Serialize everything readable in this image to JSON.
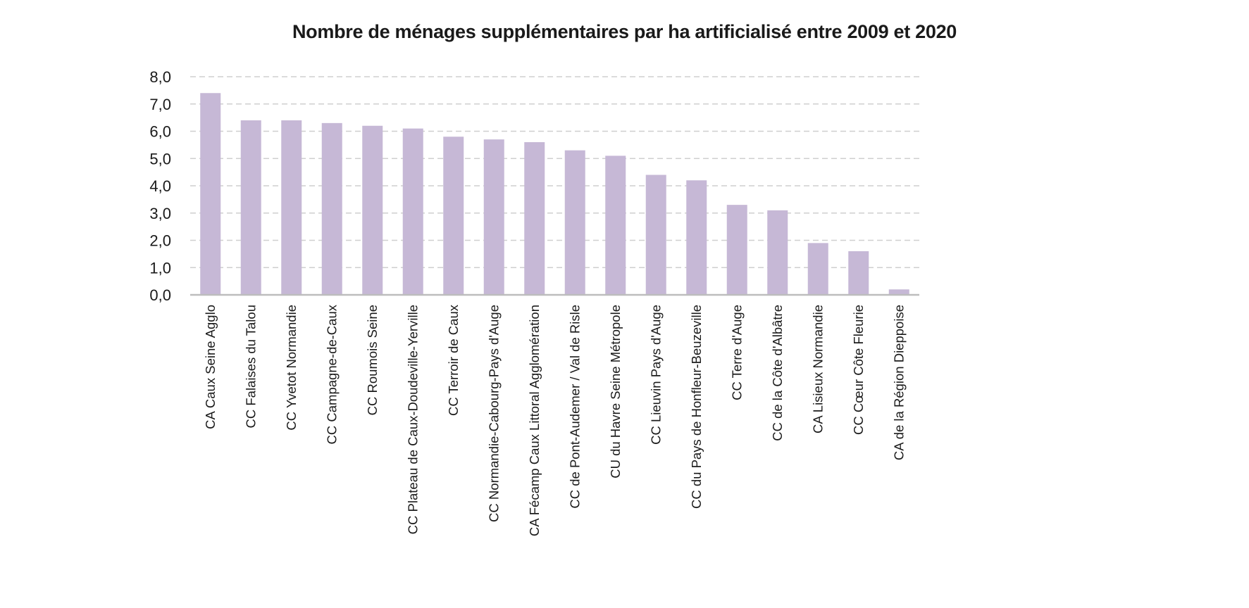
{
  "chart_data": {
    "type": "bar",
    "title": "Nombre de ménages supplémentaires par ha artificialisé entre 2009 et 2020",
    "xlabel": "",
    "ylabel": "",
    "ylim": [
      0,
      8
    ],
    "yticks": [
      "0,0",
      "1,0",
      "2,0",
      "3,0",
      "4,0",
      "5,0",
      "6,0",
      "7,0",
      "8,0"
    ],
    "grid": true,
    "color": "#c6b8d6",
    "categories": [
      "CA Caux Seine Agglo",
      "CC Falaises du Talou",
      "CC Yvetot Normandie",
      "CC Campagne-de-Caux",
      "CC Roumois Seine",
      "CC Plateau de Caux-Doudeville-Yerville",
      "CC Terroir de Caux",
      "CC Normandie-Cabourg-Pays d'Auge",
      "CA Fécamp Caux Littoral Agglomération",
      "CC de Pont-Audemer / Val de Risle",
      "CU du Havre Seine Métropole",
      "CC Lieuvin Pays d'Auge",
      "CC du Pays de Honfleur-Beuzeville",
      "CC Terre d'Auge",
      "CC de la Côte d'Albâtre",
      "CA Lisieux Normandie",
      "CC Cœur Côte Fleurie",
      "CA de la Région Dieppoise"
    ],
    "values": [
      7.4,
      6.4,
      6.4,
      6.3,
      6.2,
      6.1,
      5.8,
      5.7,
      5.6,
      5.3,
      5.1,
      4.4,
      4.2,
      3.3,
      3.1,
      1.9,
      1.6,
      0.2
    ]
  }
}
